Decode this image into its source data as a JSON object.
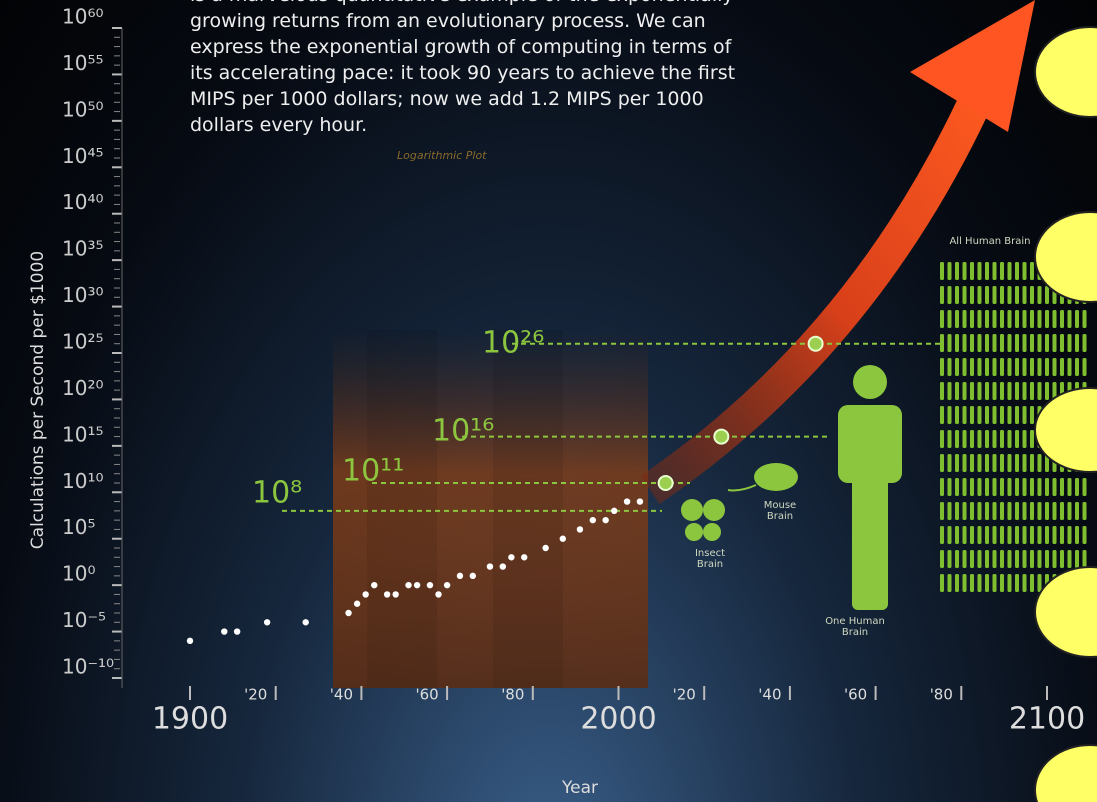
{
  "chart_data": {
    "type": "scatter",
    "description": [
      "is a marvelous quantitative example of the exponentially",
      "growing returns from an evolutionary process. We can",
      "express the exponential growth of computing in terms of",
      "its accelerating pace: it took 90 years to achieve the first",
      "MIPS per 1000 dollars; now we add 1.2 MIPS per 1000",
      "dollars every hour."
    ],
    "note": "Logarithmic Plot",
    "xlabel": "Year",
    "ylabel": "Calculations per Second per $1000",
    "log_y": true,
    "color": "#ffffff",
    "x": [
      1900,
      1908,
      1911,
      1918,
      1927,
      1937,
      1939,
      1941,
      1943,
      1946,
      1948,
      1951,
      1953,
      1956,
      1958,
      1960,
      1963,
      1966,
      1970,
      1973,
      1975,
      1978,
      1983,
      1987,
      1991,
      1994,
      1997,
      1999,
      2002,
      2005
    ],
    "values": [
      1e-06,
      1e-05,
      1e-05,
      0.0001,
      0.0001,
      0.001,
      0.01,
      0.1,
      1,
      0.1,
      0.1,
      1,
      1,
      1,
      0.1,
      1,
      10,
      10,
      100,
      100,
      1000,
      1000,
      10000.0,
      100000.0,
      1000000.0,
      10000000.0,
      10000000.0,
      100000000.0,
      1000000000.0,
      1000000000.0
    ],
    "xlim": [
      1900,
      2100
    ],
    "ylim": [
      1e-10,
      1e+60
    ],
    "xticks": [
      1900,
      {
        "value": 1920,
        "label": "'20"
      },
      {
        "value": 1940,
        "label": "'40"
      },
      {
        "value": 1960,
        "label": "'60"
      },
      {
        "value": 1980,
        "label": "'80"
      },
      2000,
      {
        "value": 2020,
        "label": "'20"
      },
      {
        "value": 2040,
        "label": "'40"
      },
      {
        "value": 2060,
        "label": "'60"
      },
      {
        "value": 2080,
        "label": "'80"
      },
      2100
    ],
    "yticks": [
      {
        "value": 1e-10,
        "label": "10⁻¹⁰"
      },
      {
        "value": 1e-05,
        "label": "10⁻⁵"
      },
      {
        "value": 1,
        "label": "10⁰"
      },
      {
        "value": 100000.0,
        "label": "10⁵"
      },
      {
        "value": 10000000000.0,
        "label": "10¹⁰"
      },
      {
        "value": 1000000000000000.0,
        "label": "10¹⁵"
      },
      {
        "value": 1e+20,
        "label": "10²⁰"
      },
      {
        "value": 1e+25,
        "label": "10²⁵"
      },
      {
        "value": 1e+30,
        "label": "10³⁰"
      },
      {
        "value": 1e+35,
        "label": "10³⁵"
      },
      {
        "value": 1e+40,
        "label": "10⁴⁰"
      },
      {
        "value": 1e+45,
        "label": "10⁴⁵"
      },
      {
        "value": 1e+50,
        "label": "10⁵⁰"
      },
      {
        "value": 1e+55,
        "label": "10⁵⁵"
      },
      {
        "value": 1e+60,
        "label": "10⁶⁰"
      }
    ],
    "milestones": [
      {
        "text": "10⁸",
        "value": 100000000.0
      },
      {
        "text": "10¹¹",
        "value": 100000000000.0,
        "x": 2011
      },
      {
        "text": "10¹⁶",
        "value": 1e+16,
        "x": 2024
      },
      {
        "text": "10²⁶",
        "value": 1e+26,
        "x": 2046
      }
    ],
    "brains": [
      "Insect Brain",
      "Mouse Brain",
      "One Human Brain",
      "All Human Brain"
    ]
  }
}
